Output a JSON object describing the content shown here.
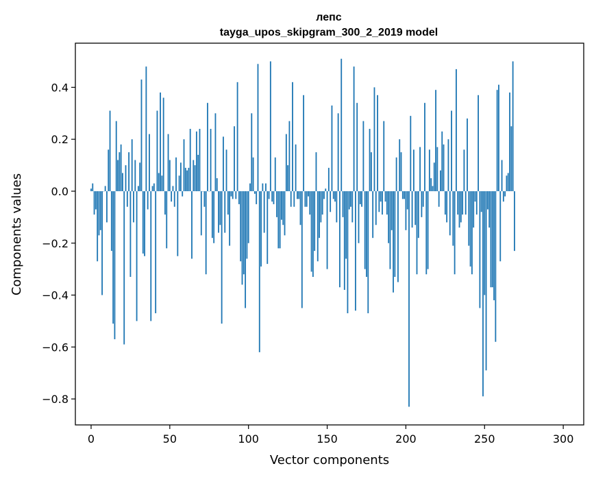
{
  "chart_data": {
    "type": "bar",
    "title": "лепс",
    "subtitle": "tayga_upos_skipgram_300_2_2019 model",
    "xlabel": "Vector components",
    "ylabel": "Components values",
    "xlim": [
      -10,
      313
    ],
    "ylim": [
      -0.9,
      0.57
    ],
    "xticks": [
      0,
      50,
      100,
      150,
      200,
      250,
      300
    ],
    "xtick_labels": [
      "0",
      "50",
      "100",
      "150",
      "200",
      "250",
      "300"
    ],
    "yticks": [
      0.4,
      0.2,
      0.0,
      -0.2,
      -0.4,
      -0.6,
      -0.8
    ],
    "ytick_labels": [
      "0.4",
      "0.2",
      "0.0",
      "−0.2",
      "−0.4",
      "−0.6",
      "−0.8"
    ],
    "bar_color": "#1f77b4",
    "series": [
      {
        "name": "лепс",
        "values": [
          0.01,
          0.03,
          -0.09,
          -0.07,
          -0.27,
          -0.17,
          -0.15,
          -0.4,
          0.0,
          0.02,
          -0.12,
          0.16,
          0.31,
          -0.23,
          -0.51,
          -0.57,
          0.27,
          0.12,
          0.15,
          0.18,
          0.07,
          -0.59,
          0.1,
          -0.06,
          0.15,
          -0.33,
          0.2,
          -0.12,
          0.12,
          -0.5,
          0.02,
          0.11,
          0.43,
          -0.24,
          -0.25,
          0.48,
          -0.07,
          0.22,
          -0.5,
          0.02,
          0.03,
          -0.47,
          0.31,
          0.07,
          0.38,
          0.06,
          0.36,
          -0.09,
          -0.22,
          0.22,
          0.12,
          -0.04,
          0.02,
          -0.06,
          0.13,
          -0.25,
          0.06,
          0.11,
          -0.02,
          0.2,
          0.09,
          0.08,
          0.09,
          0.24,
          -0.26,
          0.12,
          0.1,
          0.23,
          0.14,
          0.24,
          -0.17,
          0.0,
          -0.06,
          -0.32,
          0.34,
          0.0,
          0.24,
          -0.18,
          -0.2,
          0.3,
          0.05,
          -0.16,
          -0.13,
          -0.51,
          0.21,
          -0.16,
          0.16,
          -0.09,
          -0.21,
          -0.02,
          -0.03,
          0.25,
          -0.03,
          0.42,
          -0.05,
          -0.27,
          -0.36,
          -0.32,
          -0.45,
          -0.26,
          -0.2,
          0.03,
          0.3,
          0.13,
          -0.01,
          -0.05,
          0.49,
          -0.62,
          -0.29,
          0.03,
          -0.16,
          0.03,
          -0.28,
          -0.03,
          0.5,
          -0.04,
          -0.05,
          0.13,
          -0.1,
          -0.22,
          -0.22,
          -0.11,
          -0.13,
          -0.17,
          0.22,
          0.1,
          0.27,
          -0.06,
          0.42,
          -0.06,
          0.18,
          -0.03,
          -0.03,
          -0.13,
          -0.45,
          0.37,
          -0.06,
          -0.06,
          -0.02,
          -0.09,
          -0.31,
          -0.33,
          -0.23,
          0.15,
          -0.27,
          -0.18,
          -0.12,
          -0.09,
          -0.03,
          0.01,
          -0.3,
          0.09,
          -0.08,
          0.33,
          -0.03,
          -0.04,
          -0.12,
          0.3,
          -0.37,
          0.51,
          -0.1,
          -0.38,
          -0.26,
          -0.47,
          -0.07,
          -0.06,
          -0.12,
          0.48,
          -0.46,
          0.34,
          -0.2,
          -0.05,
          -0.06,
          0.27,
          -0.3,
          -0.33,
          -0.47,
          0.24,
          0.15,
          -0.18,
          0.4,
          -0.13,
          0.37,
          -0.08,
          -0.04,
          -0.09,
          0.27,
          -0.04,
          -0.09,
          -0.2,
          -0.3,
          -0.15,
          -0.39,
          -0.33,
          0.13,
          -0.35,
          0.2,
          0.15,
          -0.03,
          -0.03,
          -0.15,
          -0.07,
          -0.83,
          0.29,
          -0.14,
          0.16,
          -0.13,
          -0.32,
          -0.18,
          0.17,
          -0.1,
          -0.06,
          0.34,
          -0.32,
          -0.3,
          0.16,
          0.05,
          0.02,
          0.11,
          0.39,
          0.17,
          -0.06,
          0.08,
          0.23,
          0.18,
          -0.09,
          -0.12,
          0.2,
          -0.17,
          0.31,
          -0.21,
          -0.32,
          0.47,
          -0.09,
          -0.14,
          -0.12,
          -0.09,
          0.16,
          -0.09,
          0.28,
          -0.21,
          -0.29,
          -0.32,
          -0.14,
          -0.04,
          -0.09,
          0.37,
          -0.45,
          -0.08,
          -0.79,
          -0.4,
          -0.69,
          -0.07,
          -0.14,
          -0.37,
          -0.37,
          -0.42,
          -0.58,
          0.39,
          0.41,
          -0.27,
          0.12,
          -0.04,
          -0.02,
          0.06,
          0.07,
          0.38,
          0.25,
          0.5,
          -0.23
        ]
      }
    ]
  }
}
